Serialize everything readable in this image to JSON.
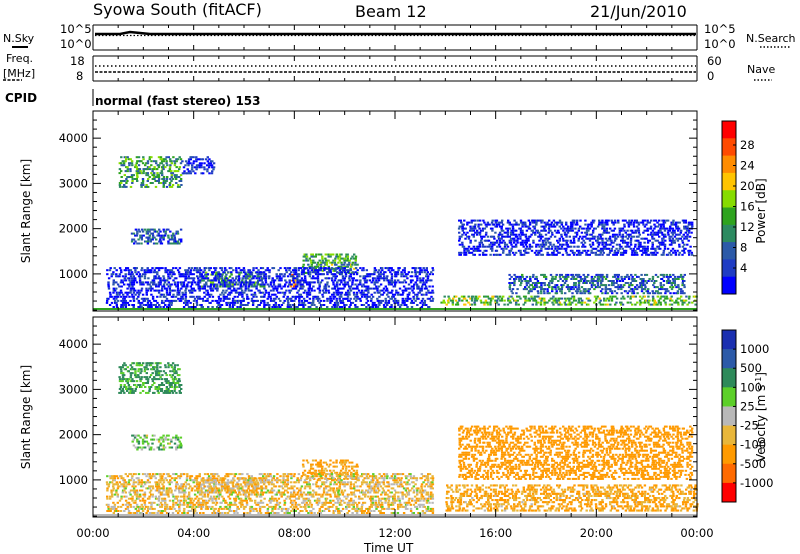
{
  "header": {
    "station": "Syowa South (fitACF)",
    "beam": "Beam 12",
    "date": "21/Jun/2010"
  },
  "top_panels": {
    "nsky_label": "N.Sky",
    "nsky_ticks": [
      "10^5",
      "10^0"
    ],
    "nsearch_label": "N.Search",
    "nsearch_ticks": [
      "10^5",
      "10^0"
    ],
    "freq_label": "Freq.",
    "freq_unit": "[MHz]",
    "freq_ticks": [
      "18",
      "8"
    ],
    "nave_label": "Nave",
    "nave_ticks": [
      "60",
      "0"
    ],
    "cpid_label": "CPID",
    "mode_text": "normal (fast stereo) 153"
  },
  "x_axis": {
    "label": "Time UT",
    "ticks": [
      "00:00",
      "04:00",
      "08:00",
      "12:00",
      "16:00",
      "20:00",
      "00:00"
    ]
  },
  "power_colorbar": {
    "label": "Power [dB]",
    "ticks": [
      "28",
      "24",
      "20",
      "16",
      "12",
      "8",
      "4"
    ],
    "colors": [
      "#ff0000",
      "#ff4a00",
      "#ff8c00",
      "#ffc400",
      "#86dc00",
      "#2ea31e",
      "#2c8a60",
      "#2c5aa8",
      "#1f3cc4",
      "#0000ff"
    ]
  },
  "velocity_colorbar": {
    "label": "Velocity [m s",
    "label_sup": "-1",
    "label_end": "]",
    "ticks": [
      "1000",
      "500",
      "100",
      "25",
      "-25",
      "-100",
      "-500",
      "-1000"
    ],
    "colors": [
      "#1a2fb0",
      "#2c5aa8",
      "#2e8a5a",
      "#5ccf29",
      "#b8b8b8",
      "#e8b63a",
      "#ff9a00",
      "#ff6a00",
      "#ff0000"
    ]
  },
  "chart_data": [
    {
      "type": "heatmap",
      "title": "",
      "variable": "Power",
      "xlabel": "Time UT",
      "ylabel": "Slant Range [km]",
      "xlim_hours": [
        0,
        24
      ],
      "ylim_km": [
        180,
        4600
      ],
      "yticks": [
        1000,
        2000,
        3000,
        4000
      ],
      "scale": [
        4,
        30
      ],
      "scale_unit": "dB",
      "blobs": [
        {
          "t0": 1.0,
          "t1": 3.5,
          "r0": 2900,
          "r1": 3600,
          "v": 14
        },
        {
          "t0": 1.5,
          "t1": 3.5,
          "r0": 1650,
          "r1": 2000,
          "v": 9
        },
        {
          "t0": 3.5,
          "t1": 4.8,
          "r0": 3200,
          "r1": 3600,
          "v": 6
        },
        {
          "t0": 4.2,
          "t1": 6.8,
          "r0": 700,
          "r1": 1050,
          "v": 14
        },
        {
          "t0": 7.8,
          "t1": 8.3,
          "r0": 700,
          "r1": 1000,
          "v": 23
        },
        {
          "t0": 8.3,
          "t1": 10.5,
          "r0": 1000,
          "r1": 1450,
          "v": 15
        },
        {
          "t0": 13.8,
          "t1": 24.0,
          "r0": 300,
          "r1": 520,
          "v": 16
        },
        {
          "t0": 16.5,
          "t1": 23.5,
          "r0": 550,
          "r1": 1000,
          "v": 10
        },
        {
          "t0": 14.5,
          "t1": 23.8,
          "r0": 1400,
          "r1": 2200,
          "v": 6
        },
        {
          "t0": 0.5,
          "t1": 13.5,
          "r0": 200,
          "r1": 1150,
          "v": 6
        }
      ]
    },
    {
      "type": "heatmap",
      "title": "",
      "variable": "Velocity",
      "xlabel": "Time UT",
      "ylabel": "Slant Range [km]",
      "xlim_hours": [
        0,
        24
      ],
      "ylim_km": [
        180,
        4600
      ],
      "yticks": [
        1000,
        2000,
        3000,
        4000
      ],
      "scale": [
        -1000,
        1000
      ],
      "scale_unit": "m s-1",
      "blobs": [
        {
          "t0": 1.0,
          "t1": 3.5,
          "r0": 2900,
          "r1": 3600,
          "v": 150
        },
        {
          "t0": 1.5,
          "t1": 3.5,
          "r0": 1650,
          "r1": 2000,
          "v": 60
        },
        {
          "t0": 4.2,
          "t1": 6.8,
          "r0": 700,
          "r1": 1050,
          "v": -80
        },
        {
          "t0": 8.3,
          "t1": 10.5,
          "r0": 1000,
          "r1": 1450,
          "v": -150
        },
        {
          "t0": 14.0,
          "t1": 24.0,
          "r0": 300,
          "r1": 900,
          "v": -120
        },
        {
          "t0": 14.5,
          "t1": 23.8,
          "r0": 1000,
          "r1": 2200,
          "v": -200
        },
        {
          "t0": 0.5,
          "t1": 13.5,
          "r0": 200,
          "r1": 1150,
          "v": -60
        }
      ]
    }
  ]
}
